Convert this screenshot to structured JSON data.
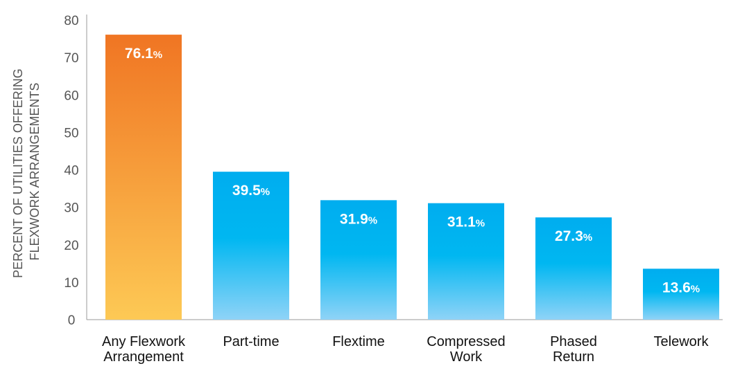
{
  "chart_data": {
    "type": "bar",
    "categories": [
      [
        "Any Flexwork",
        "Arrangement"
      ],
      [
        "Part-time"
      ],
      [
        "Flextime"
      ],
      [
        "Compressed",
        "Work"
      ],
      [
        "Phased",
        "Return"
      ],
      [
        "Telework"
      ]
    ],
    "values": [
      76.1,
      39.5,
      31.9,
      31.1,
      27.3,
      13.6
    ],
    "value_labels": [
      "76.1",
      "39.5",
      "31.9",
      "31.1",
      "27.3",
      "13.6"
    ],
    "value_suffix": "%",
    "ylabel": [
      "PERCENT OF UTILITIES OFFERING",
      "FLEXWORK ARRANGEMENTS"
    ],
    "ylim": [
      0,
      80
    ],
    "yticks": [
      0,
      10,
      20,
      30,
      40,
      50,
      60,
      70,
      80
    ],
    "grid": false,
    "legend": "none",
    "colors": {
      "highlight_top": "#f07523",
      "highlight_bottom": "#fdc955",
      "bar_top": "#00adef",
      "bar_mid": "#00b7f1",
      "bar_bottom": "#8fd3f7",
      "axis": "#999999"
    }
  }
}
